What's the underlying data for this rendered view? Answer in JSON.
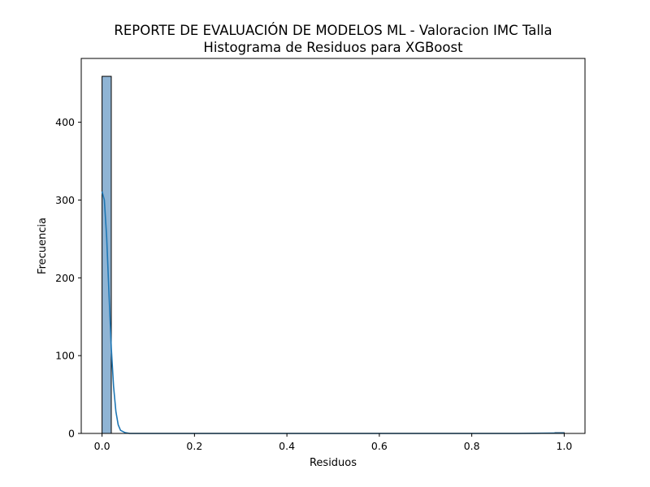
{
  "chart_data": {
    "type": "bar",
    "title": "REPORTE DE EVALUACIÓN DE MODELOS ML - Valoracion IMC Talla",
    "subtitle": "Histograma de Residuos para XGBoost",
    "xlabel": "Residuos",
    "ylabel": "Frecuencia",
    "xlim": [
      -0.045,
      1.045
    ],
    "ylim": [
      0,
      482
    ],
    "xticks": [
      0.0,
      0.2,
      0.4,
      0.6,
      0.8,
      1.0
    ],
    "xtick_labels": [
      "0.0",
      "0.2",
      "0.4",
      "0.6",
      "0.8",
      "1.0"
    ],
    "yticks": [
      0,
      100,
      200,
      300,
      400
    ],
    "ytick_labels": [
      "0",
      "100",
      "200",
      "300",
      "400"
    ],
    "grid": false,
    "bins": [
      {
        "x0": 0.0,
        "x1": 0.02,
        "count": 459
      },
      {
        "x0": 0.98,
        "x1": 1.0,
        "count": 1
      }
    ],
    "kde": {
      "x": [
        0.0,
        0.005,
        0.01,
        0.015,
        0.02,
        0.025,
        0.03,
        0.035,
        0.04,
        0.05,
        0.06,
        0.1,
        0.3,
        0.5,
        0.7,
        0.9,
        0.98,
        1.0
      ],
      "y": [
        311,
        300,
        252,
        180,
        110,
        60,
        28,
        11,
        4,
        1,
        0,
        0,
        0,
        0,
        0,
        0,
        0.5,
        0.5
      ]
    },
    "colors": {
      "bar_fill": "#8fb4d4",
      "bar_edge": "#000000",
      "kde_line": "#1f77b4",
      "axis": "#000000"
    }
  }
}
